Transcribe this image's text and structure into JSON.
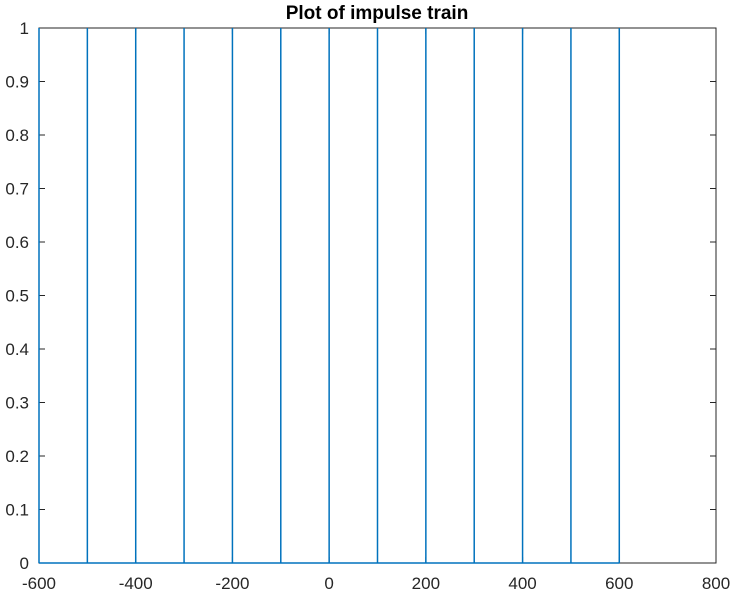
{
  "chart_data": {
    "type": "line",
    "title": "Plot of impulse train",
    "xlabel": "",
    "ylabel": "",
    "xlim": [
      -600,
      800
    ],
    "ylim": [
      0,
      1
    ],
    "xticks": [
      -600,
      -400,
      -200,
      0,
      200,
      400,
      600,
      800
    ],
    "yticks": [
      0,
      0.1,
      0.2,
      0.3,
      0.4,
      0.5,
      0.6,
      0.7,
      0.8,
      0.9,
      1
    ],
    "grid": false,
    "line_color": "#0072BD",
    "impulse_positions": [
      -600,
      -500,
      -400,
      -300,
      -200,
      -100,
      0,
      100,
      200,
      300,
      400,
      500,
      600
    ],
    "impulse_height": 1,
    "baseline": 0
  }
}
